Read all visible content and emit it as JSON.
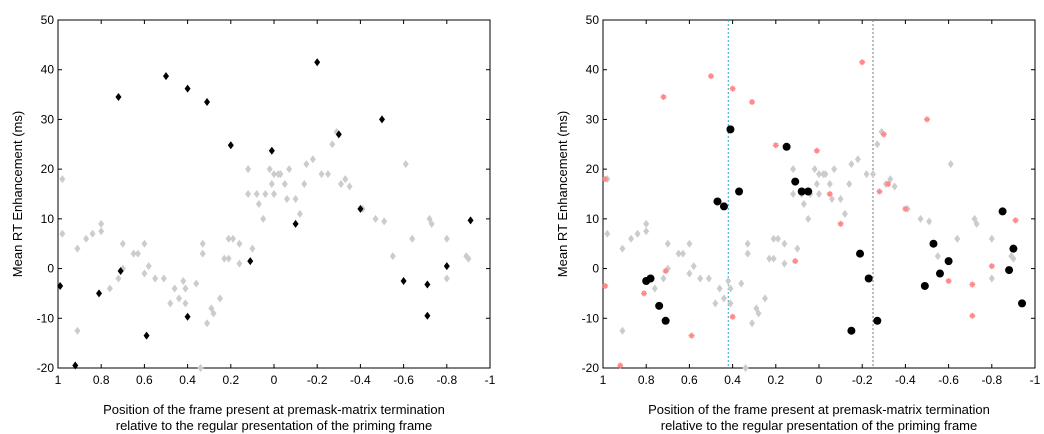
{
  "chart_data": [
    {
      "type": "scatter",
      "xlabel_line1": "Position of the frame present at premask-matrix termination",
      "xlabel_line2": "relative to the regular presentation of the priming frame",
      "ylabel": "Mean RT Enhancement (ms)",
      "xlim": [
        1,
        -1
      ],
      "ylim": [
        -20,
        50
      ],
      "x_ticks": [
        1,
        0.8,
        0.6,
        0.4,
        0.2,
        0,
        -0.2,
        -0.4,
        -0.6,
        -0.8,
        -1
      ],
      "x_tick_labels": [
        "1",
        "0.8",
        "0.6",
        "0.4",
        "0.2",
        "0",
        "-0.2",
        "-0.4",
        "-0.6",
        "-0.8",
        "-1"
      ],
      "y_ticks": [
        -20,
        -10,
        0,
        10,
        20,
        30,
        40,
        50
      ],
      "y_tick_labels": [
        "-20",
        "-10",
        "0",
        "10",
        "20",
        "30",
        "40",
        "50"
      ],
      "vlines": [],
      "colors": {
        "gray": "#cccccc",
        "black": "#000000"
      },
      "series": [
        {
          "marker": "diamond",
          "color": "#cccccc",
          "points": [
            [
              0.98,
              7
            ],
            [
              0.98,
              18
            ],
            [
              0.91,
              -12.5
            ],
            [
              0.91,
              4
            ],
            [
              0.87,
              6
            ],
            [
              0.84,
              7
            ],
            [
              0.8,
              7.5
            ],
            [
              0.8,
              9
            ],
            [
              0.76,
              -4
            ],
            [
              0.72,
              -2
            ],
            [
              0.7,
              5
            ],
            [
              0.7,
              0
            ],
            [
              0.65,
              3
            ],
            [
              0.63,
              3
            ],
            [
              0.6,
              -1
            ],
            [
              0.6,
              5
            ],
            [
              0.58,
              0.5
            ],
            [
              0.55,
              -2
            ],
            [
              0.51,
              -2
            ],
            [
              0.48,
              -7
            ],
            [
              0.46,
              -4
            ],
            [
              0.44,
              -6
            ],
            [
              0.42,
              -2.5
            ],
            [
              0.41,
              -4
            ],
            [
              0.41,
              -7
            ],
            [
              0.36,
              -3
            ],
            [
              0.34,
              -20
            ],
            [
              0.33,
              5
            ],
            [
              0.33,
              3
            ],
            [
              0.31,
              -11
            ],
            [
              0.29,
              -8
            ],
            [
              0.28,
              -9
            ],
            [
              0.25,
              -6
            ],
            [
              0.23,
              2
            ],
            [
              0.21,
              6
            ],
            [
              0.21,
              2
            ],
            [
              0.19,
              6
            ],
            [
              0.16,
              5
            ],
            [
              0.16,
              1
            ],
            [
              0.12,
              15
            ],
            [
              0.12,
              20
            ],
            [
              0.1,
              4
            ],
            [
              0.08,
              15
            ],
            [
              0.07,
              13
            ],
            [
              0.05,
              10
            ],
            [
              0.04,
              15
            ],
            [
              0.02,
              20
            ],
            [
              0.01,
              17
            ],
            [
              0.0,
              19
            ],
            [
              0.0,
              15
            ],
            [
              -0.02,
              19
            ],
            [
              -0.03,
              19
            ],
            [
              -0.05,
              17
            ],
            [
              -0.06,
              14
            ],
            [
              -0.07,
              20
            ],
            [
              -0.1,
              14
            ],
            [
              -0.12,
              11
            ],
            [
              -0.14,
              17
            ],
            [
              -0.15,
              21
            ],
            [
              -0.18,
              22
            ],
            [
              -0.22,
              19
            ],
            [
              -0.25,
              19
            ],
            [
              -0.27,
              25
            ],
            [
              -0.29,
              27.5
            ],
            [
              -0.31,
              17
            ],
            [
              -0.33,
              18
            ],
            [
              -0.35,
              16.5
            ],
            [
              -0.41,
              12
            ],
            [
              -0.47,
              10
            ],
            [
              -0.51,
              9.5
            ],
            [
              -0.55,
              2.5
            ],
            [
              -0.61,
              21
            ],
            [
              -0.64,
              6
            ],
            [
              -0.72,
              10
            ],
            [
              -0.73,
              9
            ],
            [
              -0.8,
              -2
            ],
            [
              -0.8,
              6
            ],
            [
              -0.89,
              2.5
            ],
            [
              -0.9,
              2
            ]
          ]
        },
        {
          "marker": "diamond",
          "color": "#000000",
          "points": [
            [
              0.99,
              -3.5
            ],
            [
              0.92,
              -19.5
            ],
            [
              0.81,
              -5
            ],
            [
              0.72,
              34.5
            ],
            [
              0.71,
              -0.5
            ],
            [
              0.59,
              -13.5
            ],
            [
              0.5,
              38.7
            ],
            [
              0.4,
              36.2
            ],
            [
              0.4,
              -9.7
            ],
            [
              0.31,
              33.5
            ],
            [
              0.2,
              24.8
            ],
            [
              0.11,
              1.5
            ],
            [
              0.01,
              23.7
            ],
            [
              -0.2,
              41.5
            ],
            [
              -0.1,
              9
            ],
            [
              -0.3,
              27
            ],
            [
              -0.4,
              12
            ],
            [
              -0.5,
              30
            ],
            [
              -0.6,
              -2.5
            ],
            [
              -0.71,
              -3.2
            ],
            [
              -0.71,
              -9.5
            ],
            [
              -0.8,
              0.5
            ],
            [
              -0.91,
              9.7
            ]
          ]
        }
      ]
    },
    {
      "type": "scatter",
      "xlabel_line1": "Position of the frame present at premask-matrix termination",
      "xlabel_line2": "relative to the regular presentation of the priming frame",
      "ylabel": "Mean RT Enhancement (ms)",
      "xlim": [
        1,
        -1
      ],
      "ylim": [
        -20,
        50
      ],
      "x_ticks": [
        1,
        0.8,
        0.6,
        0.4,
        0.2,
        0,
        -0.2,
        -0.4,
        -0.6,
        -0.8,
        -1
      ],
      "x_tick_labels": [
        "1",
        "0.8",
        "0.6",
        "0.4",
        "0.2",
        "0",
        "-0.2",
        "-0.4",
        "-0.6",
        "-0.8",
        "-1"
      ],
      "y_ticks": [
        -20,
        -10,
        0,
        10,
        20,
        30,
        40,
        50
      ],
      "y_tick_labels": [
        "-20",
        "-10",
        "0",
        "10",
        "20",
        "30",
        "40",
        "50"
      ],
      "vlines": [
        {
          "x": 0.42,
          "color": "#2aa7c9",
          "style": "dotted"
        },
        {
          "x": -0.25,
          "color": "#777777",
          "style": "dotted"
        }
      ],
      "colors": {
        "gray": "#cccccc",
        "red": "#ff8888",
        "black": "#000000"
      },
      "series": [
        {
          "marker": "diamond",
          "color": "#cccccc",
          "points": [
            [
              0.98,
              7
            ],
            [
              0.98,
              18
            ],
            [
              0.91,
              -12.5
            ],
            [
              0.91,
              4
            ],
            [
              0.87,
              6
            ],
            [
              0.84,
              7
            ],
            [
              0.8,
              7.5
            ],
            [
              0.8,
              9
            ],
            [
              0.76,
              -4
            ],
            [
              0.72,
              -2
            ],
            [
              0.7,
              5
            ],
            [
              0.7,
              0
            ],
            [
              0.65,
              3
            ],
            [
              0.63,
              3
            ],
            [
              0.6,
              -1
            ],
            [
              0.6,
              5
            ],
            [
              0.58,
              0.5
            ],
            [
              0.55,
              -2
            ],
            [
              0.51,
              -2
            ],
            [
              0.48,
              -7
            ],
            [
              0.46,
              -4
            ],
            [
              0.44,
              -6
            ],
            [
              0.42,
              -2.5
            ],
            [
              0.41,
              -4
            ],
            [
              0.41,
              -7
            ],
            [
              0.36,
              -3
            ],
            [
              0.34,
              -20
            ],
            [
              0.33,
              5
            ],
            [
              0.33,
              3
            ],
            [
              0.31,
              -11
            ],
            [
              0.29,
              -8
            ],
            [
              0.28,
              -9
            ],
            [
              0.25,
              -6
            ],
            [
              0.23,
              2
            ],
            [
              0.21,
              6
            ],
            [
              0.21,
              2
            ],
            [
              0.19,
              6
            ],
            [
              0.16,
              5
            ],
            [
              0.16,
              1
            ],
            [
              0.12,
              15
            ],
            [
              0.12,
              20
            ],
            [
              0.1,
              4
            ],
            [
              0.08,
              15
            ],
            [
              0.07,
              13
            ],
            [
              0.05,
              10
            ],
            [
              0.04,
              15
            ],
            [
              0.02,
              20
            ],
            [
              0.01,
              17
            ],
            [
              0.0,
              19
            ],
            [
              0.0,
              15
            ],
            [
              -0.02,
              19
            ],
            [
              -0.03,
              19
            ],
            [
              -0.05,
              17
            ],
            [
              -0.06,
              14
            ],
            [
              -0.07,
              20
            ],
            [
              -0.1,
              14
            ],
            [
              -0.12,
              11
            ],
            [
              -0.14,
              17
            ],
            [
              -0.15,
              21
            ],
            [
              -0.18,
              22
            ],
            [
              -0.22,
              19
            ],
            [
              -0.25,
              19
            ],
            [
              -0.27,
              25
            ],
            [
              -0.29,
              27.5
            ],
            [
              -0.31,
              17
            ],
            [
              -0.33,
              18
            ],
            [
              -0.35,
              16.5
            ],
            [
              -0.41,
              12
            ],
            [
              -0.47,
              10
            ],
            [
              -0.51,
              9.5
            ],
            [
              -0.55,
              2.5
            ],
            [
              -0.61,
              21
            ],
            [
              -0.64,
              6
            ],
            [
              -0.72,
              10
            ],
            [
              -0.73,
              9
            ],
            [
              -0.8,
              -2
            ],
            [
              -0.8,
              6
            ],
            [
              -0.89,
              2.5
            ],
            [
              -0.9,
              2
            ]
          ]
        },
        {
          "marker": "star",
          "color": "#ff8888",
          "points": [
            [
              0.99,
              -3.5
            ],
            [
              0.99,
              18
            ],
            [
              0.92,
              -19.5
            ],
            [
              0.81,
              -5
            ],
            [
              0.72,
              34.5
            ],
            [
              0.71,
              -0.5
            ],
            [
              0.59,
              -13.5
            ],
            [
              0.5,
              38.7
            ],
            [
              0.4,
              36.2
            ],
            [
              0.4,
              -9.7
            ],
            [
              0.31,
              33.5
            ],
            [
              0.2,
              24.8
            ],
            [
              0.11,
              1.5
            ],
            [
              0.01,
              23.7
            ],
            [
              -0.2,
              41.5
            ],
            [
              -0.1,
              9
            ],
            [
              -0.3,
              27
            ],
            [
              -0.4,
              12
            ],
            [
              -0.5,
              30
            ],
            [
              -0.6,
              -2.5
            ],
            [
              -0.71,
              -3.2
            ],
            [
              -0.71,
              -9.5
            ],
            [
              -0.8,
              0.5
            ],
            [
              -0.91,
              9.7
            ],
            [
              -0.05,
              15
            ],
            [
              -0.28,
              15.5
            ],
            [
              -0.32,
              17
            ]
          ]
        },
        {
          "marker": "circle",
          "color": "#000000",
          "points": [
            [
              0.8,
              -2.5
            ],
            [
              0.78,
              -2
            ],
            [
              0.74,
              -7.5
            ],
            [
              0.71,
              -10.5
            ],
            [
              0.47,
              13.5
            ],
            [
              0.44,
              12.5
            ],
            [
              0.41,
              28
            ],
            [
              0.37,
              15.5
            ],
            [
              0.15,
              24.5
            ],
            [
              0.11,
              17.5
            ],
            [
              0.08,
              15.5
            ],
            [
              0.05,
              15.5
            ],
            [
              -0.15,
              -12.5
            ],
            [
              -0.19,
              3
            ],
            [
              -0.23,
              -2
            ],
            [
              -0.27,
              -10.5
            ],
            [
              -0.49,
              -3.5
            ],
            [
              -0.53,
              5
            ],
            [
              -0.56,
              -1
            ],
            [
              -0.6,
              1.5
            ],
            [
              -0.85,
              11.5
            ],
            [
              -0.88,
              -0.3
            ],
            [
              -0.9,
              4
            ],
            [
              -0.94,
              -7
            ]
          ]
        }
      ]
    }
  ]
}
